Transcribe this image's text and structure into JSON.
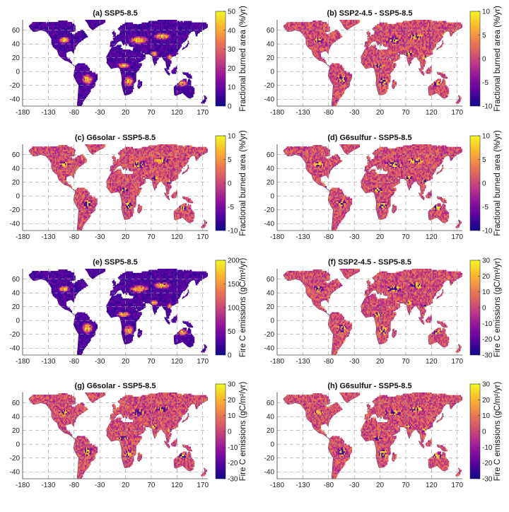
{
  "chart_data": [
    {
      "type": "heatmap",
      "title": "(a) SSP5-8.5",
      "colorbar": {
        "label": "Fractional burned area (%/yr)",
        "min": 0,
        "max": 50,
        "ticks": [
          0,
          10,
          20,
          30,
          40,
          50
        ]
      },
      "x_ticks": [
        -180,
        -130,
        -80,
        -30,
        20,
        70,
        120,
        170
      ],
      "y_ticks": [
        60,
        40,
        20,
        0,
        -20,
        -40
      ],
      "xlim": [
        -180,
        180
      ],
      "ylim": [
        -50,
        75
      ],
      "grid": "dashed"
    },
    {
      "type": "heatmap",
      "title": "(b) SSP2-4.5 - SSP5-8.5",
      "colorbar": {
        "label": "Fractional burned area (%/yr)",
        "min": -10,
        "max": 10,
        "ticks": [
          10,
          5,
          0,
          -5,
          -10
        ]
      },
      "x_ticks": [
        -180,
        -130,
        -80,
        -30,
        20,
        70,
        120,
        170
      ],
      "y_ticks": [
        60,
        40,
        20,
        0,
        -20,
        -40
      ],
      "xlim": [
        -180,
        180
      ],
      "ylim": [
        -50,
        75
      ],
      "grid": "dashed"
    },
    {
      "type": "heatmap",
      "title": "(c) G6solar - SSP5-8.5",
      "colorbar": {
        "label": "Fractional burned area (%/yr)",
        "min": -10,
        "max": 10,
        "ticks": [
          10,
          5,
          0,
          -5,
          -10
        ]
      },
      "x_ticks": [
        -180,
        -130,
        -80,
        -30,
        20,
        70,
        120,
        170
      ],
      "y_ticks": [
        60,
        40,
        20,
        0,
        -20,
        -40
      ],
      "xlim": [
        -180,
        180
      ],
      "ylim": [
        -50,
        75
      ],
      "grid": "dashed"
    },
    {
      "type": "heatmap",
      "title": "(d) G6sulfur - SSP5-8.5",
      "colorbar": {
        "label": "Fractional burned area (%/yr)",
        "min": -10,
        "max": 10,
        "ticks": [
          10,
          5,
          0,
          -5,
          -10
        ]
      },
      "x_ticks": [
        -180,
        -130,
        -80,
        -30,
        20,
        70,
        120,
        170
      ],
      "y_ticks": [
        60,
        40,
        20,
        0,
        -20,
        -40
      ],
      "xlim": [
        -180,
        180
      ],
      "ylim": [
        -50,
        75
      ],
      "grid": "dashed"
    },
    {
      "type": "heatmap",
      "title": "(e) SSP5-8.5",
      "colorbar": {
        "label": "Fire C emissions (gC/m²/yr)",
        "min": 0,
        "max": 200,
        "ticks": [
          200,
          150,
          100,
          50,
          0
        ]
      },
      "x_ticks": [
        -180,
        -130,
        -80,
        -30,
        20,
        70,
        120,
        170
      ],
      "y_ticks": [
        60,
        40,
        20,
        0,
        -20,
        -40
      ],
      "xlim": [
        -180,
        180
      ],
      "ylim": [
        -50,
        75
      ],
      "grid": "dashed"
    },
    {
      "type": "heatmap",
      "title": "(f) SSP2-4.5 - SSP5-8.5",
      "colorbar": {
        "label": "Fire C emissions (gC/m²/yr)",
        "min": -30,
        "max": 30,
        "ticks": [
          30,
          20,
          10,
          0,
          -10,
          -20,
          -30
        ]
      },
      "x_ticks": [
        -180,
        -130,
        -80,
        -30,
        20,
        70,
        120,
        170
      ],
      "y_ticks": [
        60,
        40,
        20,
        0,
        -20,
        -40
      ],
      "xlim": [
        -180,
        180
      ],
      "ylim": [
        -50,
        75
      ],
      "grid": "dashed"
    },
    {
      "type": "heatmap",
      "title": "(g) G6solar - SSP5-8.5",
      "colorbar": {
        "label": "Fire C emissions (gC/m²/yr)",
        "min": -30,
        "max": 30,
        "ticks": [
          30,
          20,
          10,
          0,
          -10,
          -20,
          -30
        ]
      },
      "x_ticks": [
        -180,
        -130,
        -80,
        -30,
        20,
        70,
        120,
        170
      ],
      "y_ticks": [
        60,
        40,
        20,
        0,
        -20,
        -40
      ],
      "xlim": [
        -180,
        180
      ],
      "ylim": [
        -50,
        75
      ],
      "grid": "dashed"
    },
    {
      "type": "heatmap",
      "title": "(h) G6sulfur - SSP5-8.5",
      "colorbar": {
        "label": "Fire C emissions (gC/m²/yr)",
        "min": -30,
        "max": 30,
        "ticks": [
          30,
          20,
          10,
          0,
          -10,
          -20,
          -30
        ]
      },
      "x_ticks": [
        -180,
        -130,
        -80,
        -30,
        20,
        70,
        120,
        170
      ],
      "y_ticks": [
        60,
        40,
        20,
        0,
        -20,
        -40
      ],
      "xlim": [
        -180,
        180
      ],
      "ylim": [
        -50,
        75
      ],
      "grid": "dashed"
    }
  ],
  "colors": {
    "colormap": [
      "#0d0887",
      "#5b02a3",
      "#9a179b",
      "#cb4678",
      "#eb7852",
      "#fbb32f",
      "#f0f921"
    ],
    "land": "#cf4b78",
    "grid": "#9a9a9a"
  }
}
